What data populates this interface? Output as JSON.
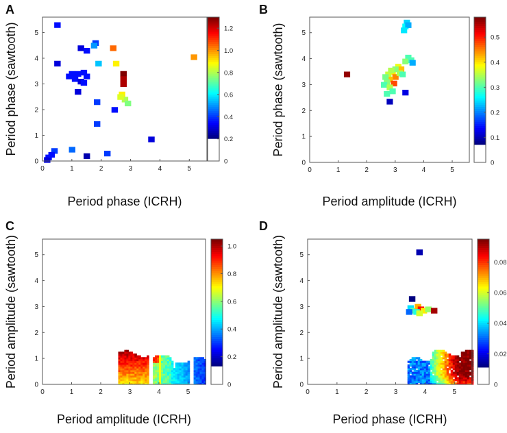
{
  "chart_data": [
    {
      "type": "heatmap",
      "panel_label": "A",
      "xlabel": "Period phase (ICRH)",
      "ylabel": "Period phase (sawtooth)",
      "xlim": [
        0,
        5.6
      ],
      "ylim": [
        0,
        5.6
      ],
      "xticks": [
        "0",
        "1",
        "2",
        "3",
        "4",
        "5"
      ],
      "yticks": [
        "0",
        "1",
        "2",
        "3",
        "4",
        "5"
      ],
      "colorbar": {
        "min": 0,
        "max": 1.3,
        "floor": 0.2,
        "ticks": [
          "0",
          "0.2",
          "0.4",
          "0.6",
          "0.8",
          "1.0",
          "1.2"
        ]
      },
      "cells": [
        [
          0.5,
          5.3,
          0.35
        ],
        [
          1.3,
          4.4,
          0.3
        ],
        [
          1.5,
          4.3,
          0.35
        ],
        [
          1.8,
          4.6,
          0.4
        ],
        [
          1.75,
          4.5,
          0.5
        ],
        [
          2.4,
          4.4,
          1.05
        ],
        [
          1.9,
          3.8,
          0.55
        ],
        [
          2.5,
          3.8,
          0.9
        ],
        [
          0.5,
          3.8,
          0.3
        ],
        [
          1.0,
          3.4,
          0.35
        ],
        [
          1.2,
          3.4,
          0.35
        ],
        [
          1.4,
          3.45,
          0.35
        ],
        [
          1.1,
          3.2,
          0.35
        ],
        [
          1.3,
          3.1,
          0.3
        ],
        [
          1.5,
          3.3,
          0.35
        ],
        [
          0.9,
          3.3,
          0.35
        ],
        [
          1.4,
          3.05,
          0.35
        ],
        [
          2.75,
          3.4,
          1.3
        ],
        [
          2.75,
          3.2,
          1.25
        ],
        [
          2.75,
          3.0,
          1.25
        ],
        [
          2.7,
          2.6,
          0.9
        ],
        [
          2.8,
          2.4,
          0.8
        ],
        [
          2.9,
          2.25,
          0.75
        ],
        [
          2.65,
          2.5,
          0.85
        ],
        [
          1.85,
          2.3,
          0.4
        ],
        [
          2.45,
          2.0,
          0.35
        ],
        [
          5.15,
          4.05,
          1.0
        ],
        [
          1.2,
          2.7,
          0.3
        ],
        [
          3.7,
          0.85,
          0.3
        ],
        [
          0.4,
          0.4,
          0.4
        ],
        [
          1.0,
          0.45,
          0.45
        ],
        [
          1.5,
          0.2,
          0.25
        ],
        [
          2.2,
          0.3,
          0.4
        ],
        [
          0.2,
          0.15,
          0.35
        ],
        [
          0.15,
          0.05,
          0.3
        ],
        [
          0.3,
          0.25,
          0.35
        ],
        [
          1.85,
          1.45,
          0.4
        ]
      ]
    },
    {
      "type": "heatmap",
      "panel_label": "B",
      "xlabel": "Period amplitude (ICRH)",
      "ylabel": "Period phase (sawtooth)",
      "xlim": [
        0,
        5.6
      ],
      "ylim": [
        0,
        5.6
      ],
      "xticks": [
        "0",
        "1",
        "2",
        "3",
        "4",
        "5"
      ],
      "yticks": [
        "0",
        "1",
        "2",
        "3",
        "4",
        "5"
      ],
      "colorbar": {
        "min": 0,
        "max": 0.58,
        "floor": 0.07,
        "ticks": [
          "0",
          "0.1",
          "0.2",
          "0.3",
          "0.4",
          "0.5"
        ]
      },
      "cells": [
        [
          3.4,
          5.4,
          0.24
        ],
        [
          3.35,
          5.25,
          0.26
        ],
        [
          3.45,
          5.3,
          0.22
        ],
        [
          3.3,
          5.1,
          0.25
        ],
        [
          1.3,
          3.4,
          0.57
        ],
        [
          3.45,
          4.05,
          0.3
        ],
        [
          3.35,
          3.9,
          0.33
        ],
        [
          3.55,
          3.95,
          0.3
        ],
        [
          3.6,
          3.85,
          0.22
        ],
        [
          3.1,
          3.7,
          0.38
        ],
        [
          3.2,
          3.6,
          0.42
        ],
        [
          2.9,
          3.5,
          0.4
        ],
        [
          2.75,
          3.4,
          0.36
        ],
        [
          3.0,
          3.3,
          0.45
        ],
        [
          2.8,
          3.2,
          0.42
        ],
        [
          2.7,
          3.1,
          0.33
        ],
        [
          2.95,
          3.05,
          0.48
        ],
        [
          2.6,
          3.0,
          0.3
        ],
        [
          2.8,
          2.9,
          0.35
        ],
        [
          2.9,
          2.75,
          0.3
        ],
        [
          2.7,
          2.65,
          0.3
        ],
        [
          3.15,
          3.45,
          0.35
        ],
        [
          3.0,
          3.6,
          0.33
        ],
        [
          2.65,
          3.3,
          0.32
        ],
        [
          3.35,
          2.7,
          0.12
        ],
        [
          2.8,
          2.35,
          0.1
        ],
        [
          3.25,
          3.4,
          0.3
        ],
        [
          2.85,
          3.55,
          0.35
        ]
      ]
    },
    {
      "type": "heatmap",
      "panel_label": "C",
      "xlabel": "Period amplitude (ICRH)",
      "ylabel": "Period amplitude (sawtooth)",
      "xlim": [
        0,
        5.6
      ],
      "ylim": [
        0,
        5.6
      ],
      "xticks": [
        "0",
        "1",
        "2",
        "3",
        "4",
        "5"
      ],
      "yticks": [
        "0",
        "1",
        "2",
        "3",
        "4",
        "5"
      ],
      "colorbar": {
        "min": 0,
        "max": 1.05,
        "floor": 0.13,
        "ticks": [
          "0",
          "0.2",
          "0.4",
          "0.6",
          "0.8",
          "1.0"
        ]
      },
      "region": {
        "x_range": [
          2.6,
          5.55
        ],
        "y_range": [
          0,
          1.4
        ],
        "pattern": "amplitude-band"
      }
    },
    {
      "type": "heatmap",
      "panel_label": "D",
      "xlabel": "Period phase (ICRH)",
      "ylabel": "Period amplitude (sawtooth)",
      "xlim": [
        0,
        5.6
      ],
      "ylim": [
        0,
        5.6
      ],
      "xticks": [
        "0",
        "1",
        "2",
        "3",
        "4",
        "5"
      ],
      "yticks": [
        "0",
        "1",
        "2",
        "3",
        "4",
        "5"
      ],
      "colorbar": {
        "min": 0,
        "max": 0.095,
        "floor": 0.011,
        "ticks": [
          "0",
          "0.02",
          "0.04",
          "0.06",
          "0.08"
        ]
      },
      "cells": [
        [
          3.8,
          5.1,
          0.015
        ],
        [
          3.55,
          3.3,
          0.01
        ],
        [
          3.5,
          2.95,
          0.04
        ],
        [
          3.6,
          2.85,
          0.05
        ],
        [
          3.75,
          3.0,
          0.07
        ],
        [
          3.85,
          2.9,
          0.085
        ],
        [
          3.95,
          2.85,
          0.065
        ],
        [
          4.1,
          2.9,
          0.055
        ],
        [
          4.3,
          2.85,
          0.092
        ],
        [
          3.45,
          2.8,
          0.03
        ],
        [
          3.7,
          2.8,
          0.045
        ],
        [
          3.8,
          2.75,
          0.06
        ]
      ],
      "region": {
        "x_range": [
          3.4,
          5.6
        ],
        "y_range": [
          0,
          1.4
        ],
        "pattern": "phase-band"
      }
    }
  ]
}
